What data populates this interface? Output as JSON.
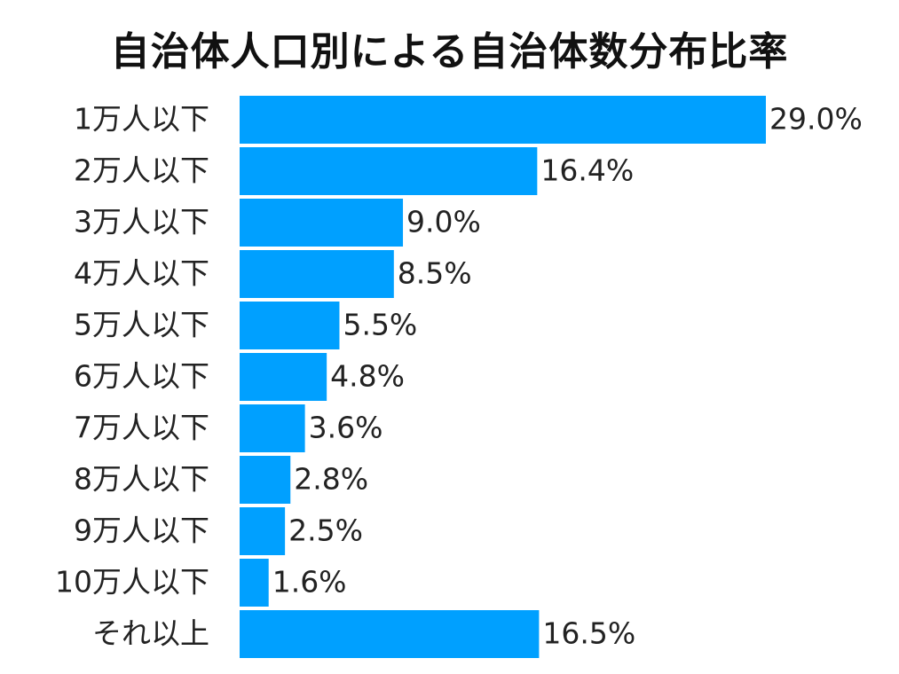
{
  "chart_data": {
    "type": "bar",
    "orientation": "horizontal",
    "title": "自治体人口別による自治体数分布比率",
    "xlabel": "",
    "ylabel": "",
    "value_suffix": "%",
    "categories": [
      "1万人以下",
      "2万人以下",
      "3万人以下",
      "4万人以下",
      "5万人以下",
      "6万人以下",
      "7万人以下",
      "8万人以下",
      "9万人以下",
      "10万人以下",
      "それ以上"
    ],
    "values": [
      29.0,
      16.4,
      9.0,
      8.5,
      5.5,
      4.8,
      3.6,
      2.8,
      2.5,
      1.6,
      16.5
    ],
    "data_labels": [
      "29.0%",
      "16.4%",
      "9.0%",
      "8.5%",
      "5.5%",
      "4.8%",
      "3.6%",
      "2.8%",
      "2.5%",
      "1.6%",
      "16.5%"
    ],
    "xlim": [
      0,
      29.0
    ],
    "grid": false,
    "legend": "none",
    "bar_color": "#00a0ff"
  }
}
